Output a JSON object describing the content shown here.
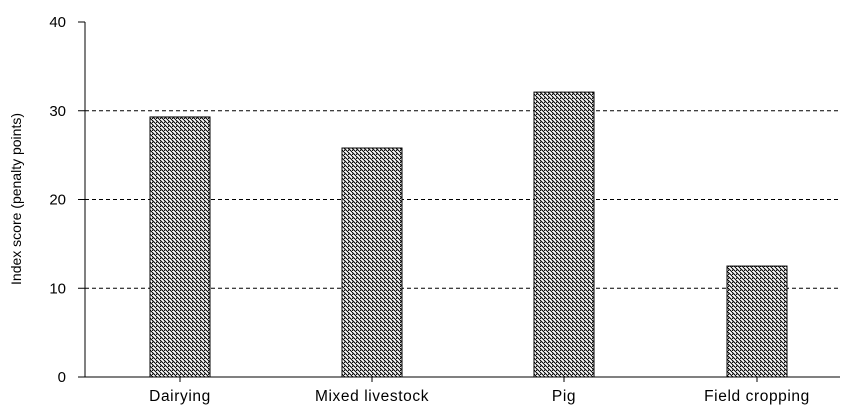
{
  "chart_data": {
    "type": "bar",
    "categories": [
      "Dairying",
      "Mixed livestock",
      "Pig",
      "Field cropping"
    ],
    "values": [
      29.3,
      25.8,
      32.1,
      12.5
    ],
    "title": "",
    "xlabel": "",
    "ylabel": "Index score (penalty points)",
    "ylim": [
      0,
      40
    ],
    "yticks": [
      "0",
      "10",
      "20",
      "30",
      "40"
    ],
    "grid": "horizontal dashed",
    "legend": "none",
    "bar_fill": "diagonal hatch",
    "colors": {
      "bar_stroke": "#000000",
      "hatch": "#000000",
      "grid": "#000000",
      "axis": "#000000"
    }
  }
}
